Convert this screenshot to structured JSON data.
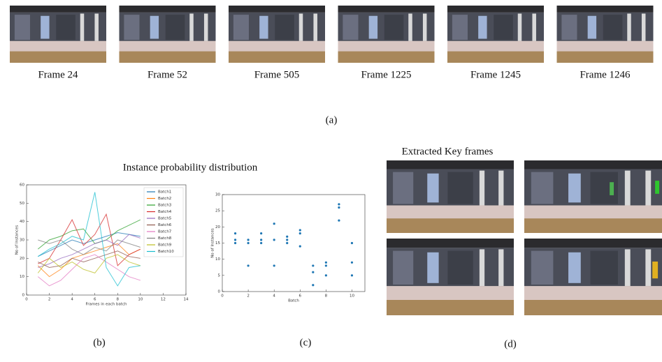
{
  "frames": [
    "Frame 24",
    "Frame 52",
    "Frame 505",
    "Frame 1225",
    "Frame 1245",
    "Frame 1246"
  ],
  "captions": {
    "a": "(a)",
    "b": "(b)",
    "c": "(c)",
    "d": "(d)"
  },
  "key_frames_title": "Extracted Key frames",
  "chart_data": [
    {
      "type": "line",
      "title": "Instance probability distribution",
      "x_label": "Frames in each batch",
      "y_label": "No of Instances",
      "x": [
        1,
        2,
        3,
        4,
        5,
        6,
        7,
        8,
        9,
        10
      ],
      "series": [
        {
          "name": "Batch1",
          "color": "#1f77b4",
          "values": [
            21,
            24,
            27,
            30,
            28,
            30,
            32,
            34,
            33,
            32
          ]
        },
        {
          "name": "Batch2",
          "color": "#ff7f0e",
          "values": [
            16,
            10,
            14,
            20,
            22,
            24,
            26,
            28,
            22,
            25
          ]
        },
        {
          "name": "Batch3",
          "color": "#2ca02c",
          "values": [
            25,
            30,
            32,
            35,
            36,
            28,
            30,
            35,
            38,
            41
          ]
        },
        {
          "name": "Batch4",
          "color": "#d62728",
          "values": [
            17,
            20,
            30,
            41,
            27,
            33,
            44,
            16,
            22,
            25
          ]
        },
        {
          "name": "Batch5",
          "color": "#9467bd",
          "values": [
            15,
            17,
            20,
            22,
            25,
            28,
            30,
            27,
            33,
            31
          ]
        },
        {
          "name": "Batch6",
          "color": "#8c564b",
          "values": [
            18,
            15,
            16,
            20,
            18,
            20,
            22,
            24,
            21,
            20
          ]
        },
        {
          "name": "Batch7",
          "color": "#e377c2",
          "values": [
            10,
            5,
            8,
            14,
            20,
            22,
            18,
            14,
            10,
            8
          ]
        },
        {
          "name": "Batch8",
          "color": "#7f7f7f",
          "values": [
            30,
            28,
            30,
            25,
            22,
            26,
            24,
            30,
            28,
            26
          ]
        },
        {
          "name": "Batch9",
          "color": "#bcbd22",
          "values": [
            12,
            20,
            15,
            18,
            14,
            12,
            20,
            22,
            18,
            16
          ]
        },
        {
          "name": "Batch10",
          "color": "#17becf",
          "values": [
            21,
            25,
            28,
            32,
            30,
            56,
            15,
            5,
            15,
            16
          ]
        }
      ],
      "xlim": [
        0,
        14
      ],
      "xticks": [
        0,
        2,
        4,
        6,
        8,
        10,
        12,
        14
      ],
      "ylim": [
        0,
        60
      ],
      "yticks": [
        0,
        10,
        20,
        30,
        40,
        50,
        60
      ],
      "legend": "upper-right"
    },
    {
      "type": "scatter",
      "x_label": "Batch",
      "y_label": "No of Instances",
      "color": "#1f77b4",
      "x": [
        1,
        1,
        1,
        2,
        2,
        2,
        3,
        3,
        3,
        4,
        4,
        4,
        5,
        5,
        5,
        6,
        6,
        6,
        7,
        7,
        7,
        8,
        8,
        8,
        9,
        9,
        9,
        10,
        10,
        10
      ],
      "values": [
        15,
        16,
        18,
        8,
        15,
        16,
        15,
        16,
        18,
        8,
        16,
        21,
        15,
        16,
        17,
        14,
        18,
        19,
        2,
        6,
        8,
        5,
        8,
        9,
        22,
        26,
        27,
        5,
        9,
        15
      ],
      "xlim": [
        0,
        11
      ],
      "xticks": [
        0,
        2,
        4,
        6,
        8,
        10
      ],
      "ylim": [
        0,
        30
      ],
      "yticks": [
        0,
        5,
        10,
        15,
        20,
        25,
        30
      ]
    }
  ]
}
